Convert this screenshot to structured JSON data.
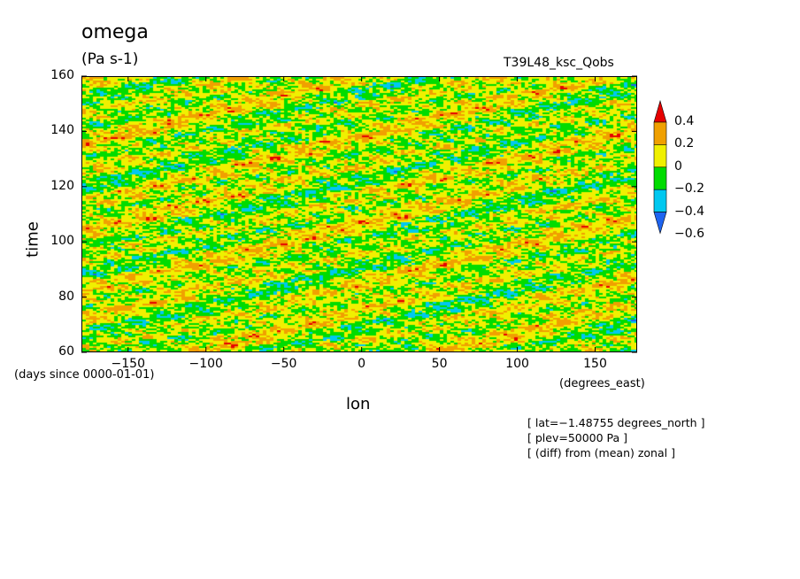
{
  "chart_data": {
    "type": "heatmap",
    "title": "omega",
    "units": "(Pa s-1)",
    "run_label": "T39L48_ksc_Qobs",
    "xlabel": "lon",
    "ylabel": "time",
    "x_units": "(degrees_east)",
    "y_units": "(days since 0000-01-01)",
    "xlim": [
      -180,
      177
    ],
    "ylim": [
      60,
      160
    ],
    "x_ticks": [
      -150,
      -100,
      -50,
      0,
      50,
      100,
      150
    ],
    "y_ticks": [
      60,
      80,
      100,
      120,
      140,
      160
    ],
    "x_tick_labels": [
      "−150",
      "−100",
      "−50",
      "0",
      "50",
      "100",
      "150"
    ],
    "y_tick_labels": [
      "60",
      "80",
      "100",
      "120",
      "140",
      "160"
    ],
    "colorbar": {
      "levels": [
        -0.6,
        -0.4,
        -0.2,
        0,
        0.2,
        0.4
      ],
      "level_labels": [
        "−0.6",
        "−0.4",
        "−0.2",
        "0",
        "0.2",
        "0.4"
      ],
      "colors": [
        "#1e64f0",
        "#00c8f0",
        "#00dc00",
        "#f0f000",
        "#f0a000",
        "#e60000"
      ],
      "extend": "both"
    },
    "notes": [
      "[ lat=−1.48755 degrees_north ]",
      "[ plev=50000 Pa ]",
      "[ (diff) from (mean) zonal ]"
    ]
  }
}
